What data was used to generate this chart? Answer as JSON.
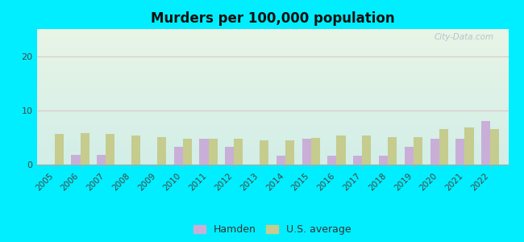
{
  "title": "Murders per 100,000 population",
  "years": [
    2005,
    2006,
    2007,
    2008,
    2009,
    2010,
    2011,
    2012,
    2013,
    2014,
    2015,
    2016,
    2017,
    2018,
    2019,
    2020,
    2021,
    2022
  ],
  "hamden": [
    0,
    1.8,
    1.8,
    0,
    0,
    3.3,
    4.7,
    3.3,
    0,
    1.6,
    4.8,
    1.7,
    1.7,
    1.7,
    3.3,
    4.8,
    4.8,
    8.0
  ],
  "us_avg": [
    5.6,
    5.8,
    5.6,
    5.4,
    5.0,
    4.8,
    4.7,
    4.7,
    4.5,
    4.4,
    4.9,
    5.4,
    5.3,
    5.0,
    5.0,
    6.5,
    6.9,
    6.5
  ],
  "hamden_color": "#c9afd8",
  "us_avg_color": "#c5cc8e",
  "outer_bg": "#00eeff",
  "plot_bg_top": "#e8f2e0",
  "plot_bg_bottom": "#d0ede8",
  "ylim": [
    0,
    25
  ],
  "yticks": [
    0,
    10,
    20
  ],
  "bar_width": 0.35,
  "legend_labels": [
    "Hamden",
    "U.S. average"
  ],
  "watermark": "City-Data.com",
  "grid_color": "#ddc8c8",
  "spine_color": "#aaaaaa"
}
